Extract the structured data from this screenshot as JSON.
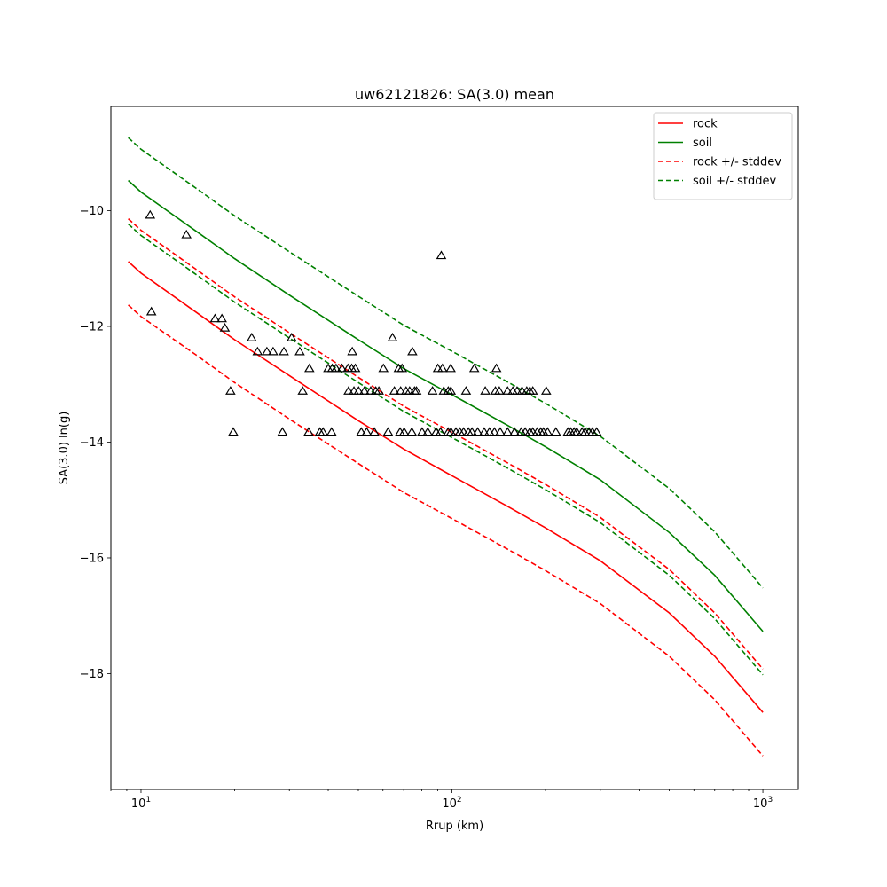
{
  "chart_data": {
    "type": "line",
    "title": "uw62121826: SA(3.0) mean",
    "xlabel": "Rrup (km)",
    "ylabel": "SA(3.0) ln(g)",
    "xscale": "log",
    "xlim": [
      8,
      1300
    ],
    "ylim": [
      -20,
      -8.2
    ],
    "x_ticks": [
      {
        "base": "10",
        "exp": "1",
        "value": 10
      },
      {
        "base": "10",
        "exp": "2",
        "value": 100
      },
      {
        "base": "10",
        "exp": "3",
        "value": 1000
      }
    ],
    "y_ticks": [
      {
        "label": "−10",
        "value": -10
      },
      {
        "label": "−12",
        "value": -12
      },
      {
        "label": "−14",
        "value": -14
      },
      {
        "label": "−16",
        "value": -16
      },
      {
        "label": "−18",
        "value": -18
      }
    ],
    "grid": false,
    "legend_position": "top-right",
    "series": [
      {
        "name": "rock",
        "color": "#ff0000",
        "style": "solid",
        "x": [
          9.1,
          10,
          15,
          20,
          30,
          50,
          70,
          100,
          150,
          200,
          300,
          500,
          700,
          1000
        ],
        "y": [
          -10.88,
          -11.08,
          -11.75,
          -12.23,
          -12.85,
          -13.63,
          -14.12,
          -14.58,
          -15.1,
          -15.48,
          -16.05,
          -16.95,
          -17.7,
          -18.67
        ]
      },
      {
        "name": "soil",
        "color": "#008000",
        "style": "solid",
        "x": [
          9.1,
          10,
          15,
          20,
          30,
          50,
          70,
          100,
          150,
          200,
          300,
          500,
          700,
          1000
        ],
        "y": [
          -9.48,
          -9.68,
          -10.35,
          -10.83,
          -11.46,
          -12.23,
          -12.73,
          -13.18,
          -13.7,
          -14.08,
          -14.65,
          -15.56,
          -16.3,
          -17.27
        ]
      },
      {
        "name": "rock +/- stddev",
        "color": "#ff0000",
        "style": "dashed",
        "x": [
          9.1,
          10,
          15,
          20,
          30,
          50,
          70,
          100,
          150,
          200,
          300,
          500,
          700,
          1000
        ],
        "y": [
          -10.14,
          -10.34,
          -11.01,
          -11.49,
          -12.11,
          -12.88,
          -13.38,
          -13.83,
          -14.35,
          -14.73,
          -15.3,
          -16.2,
          -16.95,
          -17.92
        ]
      },
      {
        "name": "",
        "color": "#ff0000",
        "style": "dashed",
        "x": [
          9.1,
          10,
          15,
          20,
          30,
          50,
          70,
          100,
          150,
          200,
          300,
          500,
          700,
          1000
        ],
        "y": [
          -11.63,
          -11.83,
          -12.49,
          -12.97,
          -13.6,
          -14.37,
          -14.87,
          -15.32,
          -15.84,
          -16.22,
          -16.79,
          -17.7,
          -18.45,
          -19.42
        ]
      },
      {
        "name": "soil +/- stddev",
        "color": "#008000",
        "style": "dashed",
        "x": [
          9.1,
          10,
          15,
          20,
          30,
          50,
          70,
          100,
          150,
          200,
          300,
          500,
          700,
          1000
        ],
        "y": [
          -8.74,
          -8.94,
          -9.61,
          -10.09,
          -10.71,
          -11.48,
          -11.98,
          -12.43,
          -12.95,
          -13.33,
          -13.9,
          -14.8,
          -15.55,
          -16.52
        ]
      },
      {
        "name": "",
        "color": "#008000",
        "style": "dashed",
        "x": [
          9.1,
          10,
          15,
          20,
          30,
          50,
          70,
          100,
          150,
          200,
          300,
          500,
          700,
          1000
        ],
        "y": [
          -10.23,
          -10.43,
          -11.1,
          -11.58,
          -12.2,
          -12.97,
          -13.47,
          -13.92,
          -14.44,
          -14.82,
          -15.39,
          -16.3,
          -17.05,
          -18.02
        ]
      }
    ],
    "observations": {
      "marker": "triangle",
      "color": "#000000",
      "points": [
        [
          10.7,
          -10.08
        ],
        [
          14,
          -10.42
        ],
        [
          10.8,
          -11.75
        ],
        [
          17.3,
          -11.87
        ],
        [
          18.2,
          -11.87
        ],
        [
          18.6,
          -12.03
        ],
        [
          22.7,
          -12.2
        ],
        [
          30.5,
          -12.2
        ],
        [
          23.7,
          -12.44
        ],
        [
          25.4,
          -12.44
        ],
        [
          26.6,
          -12.44
        ],
        [
          28.8,
          -12.44
        ],
        [
          32.4,
          -12.44
        ],
        [
          47.8,
          -12.44
        ],
        [
          19.4,
          -13.12
        ],
        [
          33.1,
          -13.12
        ],
        [
          34.8,
          -12.73
        ],
        [
          40,
          -12.73
        ],
        [
          41.2,
          -12.73
        ],
        [
          42.4,
          -12.73
        ],
        [
          44.3,
          -12.73
        ],
        [
          46.3,
          -12.73
        ],
        [
          47.6,
          -12.73
        ],
        [
          48.9,
          -12.73
        ],
        [
          60.2,
          -12.73
        ],
        [
          67.4,
          -12.73
        ],
        [
          69.1,
          -12.73
        ],
        [
          90.1,
          -12.73
        ],
        [
          93.2,
          -12.73
        ],
        [
          99.1,
          -12.73
        ],
        [
          118,
          -12.73
        ],
        [
          139,
          -12.73
        ],
        [
          64.4,
          -12.2
        ],
        [
          74.6,
          -12.44
        ],
        [
          92.4,
          -10.78
        ],
        [
          46.5,
          -13.12
        ],
        [
          48.4,
          -13.12
        ],
        [
          50.1,
          -13.12
        ],
        [
          52.3,
          -13.12
        ],
        [
          54.8,
          -13.12
        ],
        [
          56.9,
          -13.12
        ],
        [
          58.2,
          -13.12
        ],
        [
          65.3,
          -13.12
        ],
        [
          68.4,
          -13.12
        ],
        [
          71.2,
          -13.12
        ],
        [
          73.1,
          -13.12
        ],
        [
          75.8,
          -13.12
        ],
        [
          76.9,
          -13.12
        ],
        [
          86.6,
          -13.12
        ],
        [
          94.1,
          -13.12
        ],
        [
          97.3,
          -13.12
        ],
        [
          99.2,
          -13.12
        ],
        [
          111,
          -13.12
        ],
        [
          128,
          -13.12
        ],
        [
          138,
          -13.12
        ],
        [
          142,
          -13.12
        ],
        [
          151,
          -13.12
        ],
        [
          157,
          -13.12
        ],
        [
          162,
          -13.12
        ],
        [
          168,
          -13.12
        ],
        [
          174,
          -13.12
        ],
        [
          178,
          -13.12
        ],
        [
          182,
          -13.12
        ],
        [
          201,
          -13.12
        ],
        [
          19.8,
          -13.83
        ],
        [
          28.5,
          -13.83
        ],
        [
          34.6,
          -13.83
        ],
        [
          37.6,
          -13.83
        ],
        [
          38.5,
          -13.83
        ],
        [
          41,
          -13.83
        ],
        [
          51.1,
          -13.83
        ],
        [
          53.2,
          -13.83
        ],
        [
          56.3,
          -13.83
        ],
        [
          62.3,
          -13.83
        ],
        [
          68.1,
          -13.83
        ],
        [
          70.2,
          -13.83
        ],
        [
          74.3,
          -13.83
        ],
        [
          80.2,
          -13.83
        ],
        [
          83.6,
          -13.83
        ],
        [
          88.9,
          -13.83
        ],
        [
          91.9,
          -13.83
        ],
        [
          97.2,
          -13.83
        ],
        [
          99.3,
          -13.83
        ],
        [
          103,
          -13.83
        ],
        [
          106,
          -13.83
        ],
        [
          109,
          -13.83
        ],
        [
          113,
          -13.83
        ],
        [
          116,
          -13.83
        ],
        [
          121,
          -13.83
        ],
        [
          127,
          -13.83
        ],
        [
          132,
          -13.83
        ],
        [
          137,
          -13.83
        ],
        [
          143,
          -13.83
        ],
        [
          151,
          -13.83
        ],
        [
          159,
          -13.83
        ],
        [
          167,
          -13.83
        ],
        [
          172,
          -13.83
        ],
        [
          178,
          -13.83
        ],
        [
          182,
          -13.83
        ],
        [
          188,
          -13.83
        ],
        [
          193,
          -13.83
        ],
        [
          197,
          -13.83
        ],
        [
          203,
          -13.83
        ],
        [
          216,
          -13.83
        ],
        [
          236,
          -13.83
        ],
        [
          241,
          -13.83
        ],
        [
          247,
          -13.83
        ],
        [
          252,
          -13.83
        ],
        [
          262,
          -13.83
        ],
        [
          268,
          -13.83
        ],
        [
          276,
          -13.83
        ],
        [
          283,
          -13.83
        ],
        [
          292,
          -13.83
        ]
      ]
    }
  }
}
